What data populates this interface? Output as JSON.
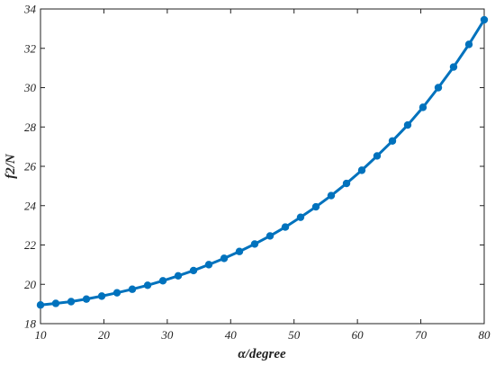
{
  "chart_data": {
    "type": "line",
    "title": "",
    "xlabel": "α/degree",
    "ylabel": "f2/N",
    "xlim": [
      10,
      80
    ],
    "ylim": [
      18,
      34
    ],
    "xticks": [
      10,
      20,
      30,
      40,
      50,
      60,
      70,
      80
    ],
    "yticks": [
      18,
      20,
      22,
      24,
      26,
      28,
      30,
      32,
      34
    ],
    "grid": false,
    "legend": "none",
    "series": [
      {
        "color": "#0072BD",
        "marker": "circle",
        "x": [
          10.0,
          12.41,
          14.83,
          17.24,
          19.66,
          22.07,
          24.48,
          26.9,
          29.31,
          31.72,
          34.14,
          36.55,
          38.97,
          41.38,
          43.79,
          46.21,
          48.62,
          51.03,
          53.45,
          55.86,
          58.28,
          60.69,
          63.1,
          65.52,
          67.93,
          70.34,
          72.76,
          75.17,
          77.59,
          80.0
        ],
        "y": [
          18.95,
          19.03,
          19.12,
          19.25,
          19.4,
          19.57,
          19.75,
          19.95,
          20.18,
          20.43,
          20.7,
          21.0,
          21.32,
          21.67,
          22.05,
          22.46,
          22.91,
          23.41,
          23.94,
          24.51,
          25.13,
          25.8,
          26.53,
          27.29,
          28.1,
          29.0,
          30.0,
          31.05,
          32.2,
          33.45
        ]
      }
    ]
  }
}
